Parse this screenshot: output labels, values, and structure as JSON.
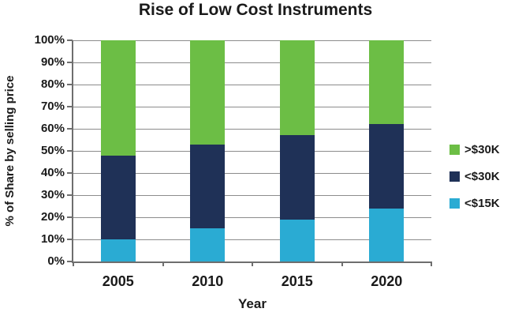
{
  "chart_data": {
    "type": "bar",
    "stacked": true,
    "percent_stacked": true,
    "title": "Rise of Low Cost Instruments",
    "xlabel": "Year",
    "ylabel": "% of Share by selling price",
    "categories": [
      "2005",
      "2010",
      "2015",
      "2020"
    ],
    "series": [
      {
        "id": "lt-15k",
        "name": "<$15K",
        "color": "#2aabd3",
        "values": [
          10,
          15,
          19,
          24
        ]
      },
      {
        "id": "lt-30k",
        "name": "<$30K",
        "color": "#1f3157",
        "values": [
          38,
          38,
          38,
          38
        ]
      },
      {
        "id": "gt-30k",
        "name": ">$30K",
        "color": "#6cbe45",
        "values": [
          52,
          47,
          43,
          38
        ]
      }
    ],
    "stack_order_note": "series listed bottom-to-top",
    "legend": {
      "position": "right",
      "order": [
        "gt-30k",
        "lt-30k",
        "lt-15k"
      ]
    },
    "ylim": [
      0,
      100
    ],
    "yticks": [
      {
        "value": 0,
        "label": "0%"
      },
      {
        "value": 10,
        "label": "10%"
      },
      {
        "value": 20,
        "label": "20%"
      },
      {
        "value": 30,
        "label": "30%"
      },
      {
        "value": 40,
        "label": "40%"
      },
      {
        "value": 50,
        "label": "50%"
      },
      {
        "value": 60,
        "label": "60%"
      },
      {
        "value": 70,
        "label": "70%"
      },
      {
        "value": 80,
        "label": "80%"
      },
      {
        "value": 90,
        "label": "90%"
      },
      {
        "value": 100,
        "label": "100%"
      }
    ],
    "grid": true,
    "grid_color": "#8c8c8c",
    "axis_color": "#6e6e6e",
    "text_color": "#1a1a1a",
    "background": "#ffffff"
  }
}
